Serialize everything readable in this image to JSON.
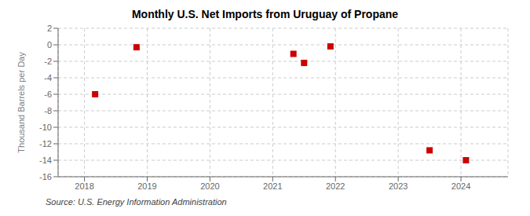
{
  "chart_data": {
    "type": "scatter",
    "title": "Monthly U.S. Net Imports from Uruguay of Propane",
    "y_label": "Thousand Barrels per Day",
    "annotation": "Source: U.S. Energy Information Administration",
    "x": [
      2018.17,
      2018.83,
      2021.33,
      2021.5,
      2021.92,
      2023.5,
      2024.08
    ],
    "values": [
      -6.0,
      -0.3,
      -1.1,
      -2.2,
      -0.2,
      -12.8,
      -14.0
    ],
    "color": "#cc0000",
    "marker": "square",
    "xlim": [
      2017.58,
      2024.75
    ],
    "xticks": [
      2018,
      2019,
      2020,
      2021,
      2022,
      2023,
      2024
    ],
    "ylim": [
      -16,
      2
    ],
    "yticks": [
      2,
      0,
      -2,
      -4,
      -6,
      -8,
      -10,
      -12,
      -14,
      -16
    ],
    "grid": true
  }
}
